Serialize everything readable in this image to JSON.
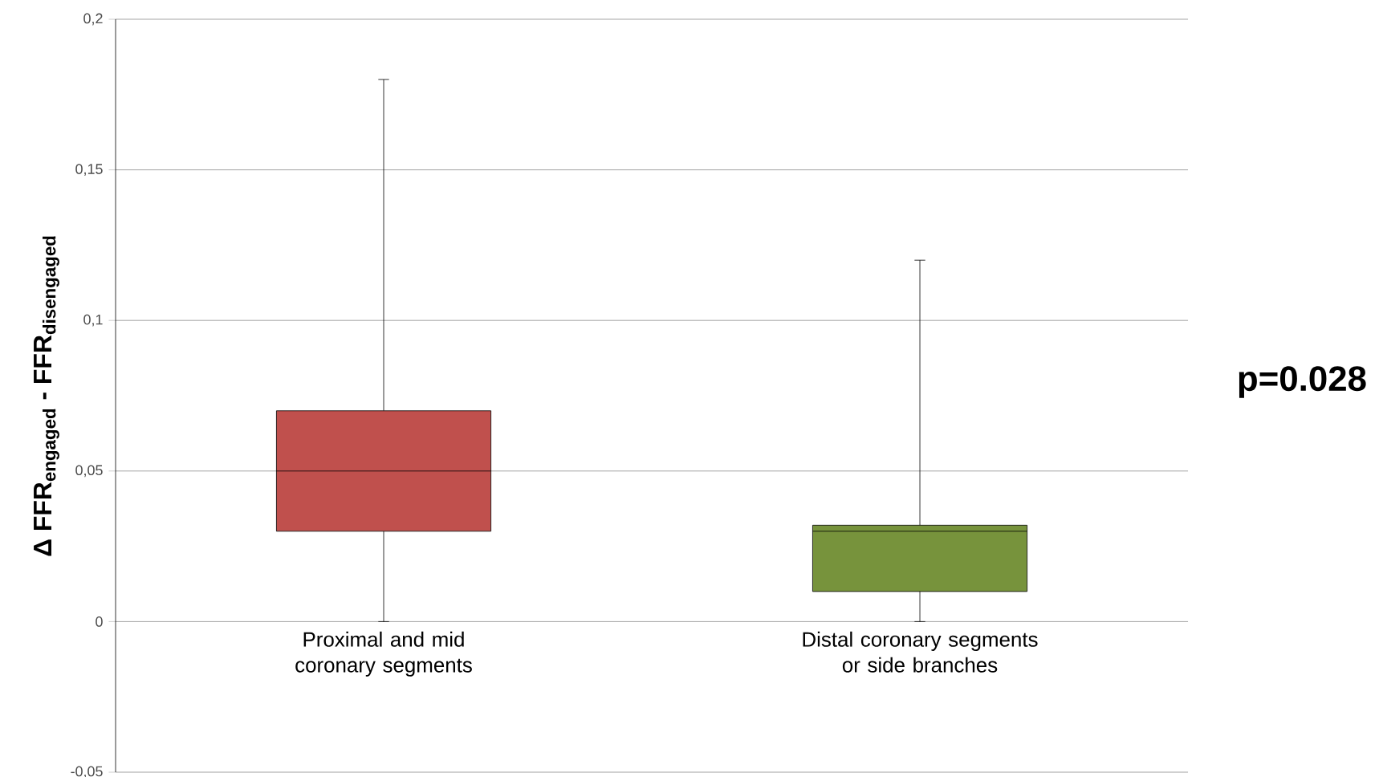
{
  "chart_data": {
    "type": "box",
    "ylabel": "\\textbf{Δ FFR}_{\\textbf{engaged}}\\ \\textbf{-}\\ \\textbf{FFR}_{\\textbf{disengaged}}",
    "categories": [
      "Proximal and mid coronary segments",
      "Distal coronary segments or side branches"
    ],
    "boxes": [
      {
        "low": 0,
        "q1": 0.03,
        "median": 0.05,
        "q3": 0.07,
        "high": 0.18
      },
      {
        "low": 0,
        "q1": 0.01,
        "median": 0.03,
        "q3": 0.032,
        "high": 0.12
      }
    ],
    "colors": [
      "#c0504d",
      "#77933c"
    ],
    "ylim": [
      -0.05,
      0.2
    ],
    "yticks": [
      {
        "value": -0.05,
        "label": "-0,05"
      },
      0,
      {
        "value": 0.05,
        "label": "0,05"
      },
      {
        "value": 0.1,
        "label": "0,1"
      },
      {
        "value": 0.15,
        "label": "0,15"
      },
      {
        "value": 0.2,
        "label": "0,2"
      }
    ],
    "grid": "y",
    "annotations": [
      "p=0.028"
    ]
  }
}
